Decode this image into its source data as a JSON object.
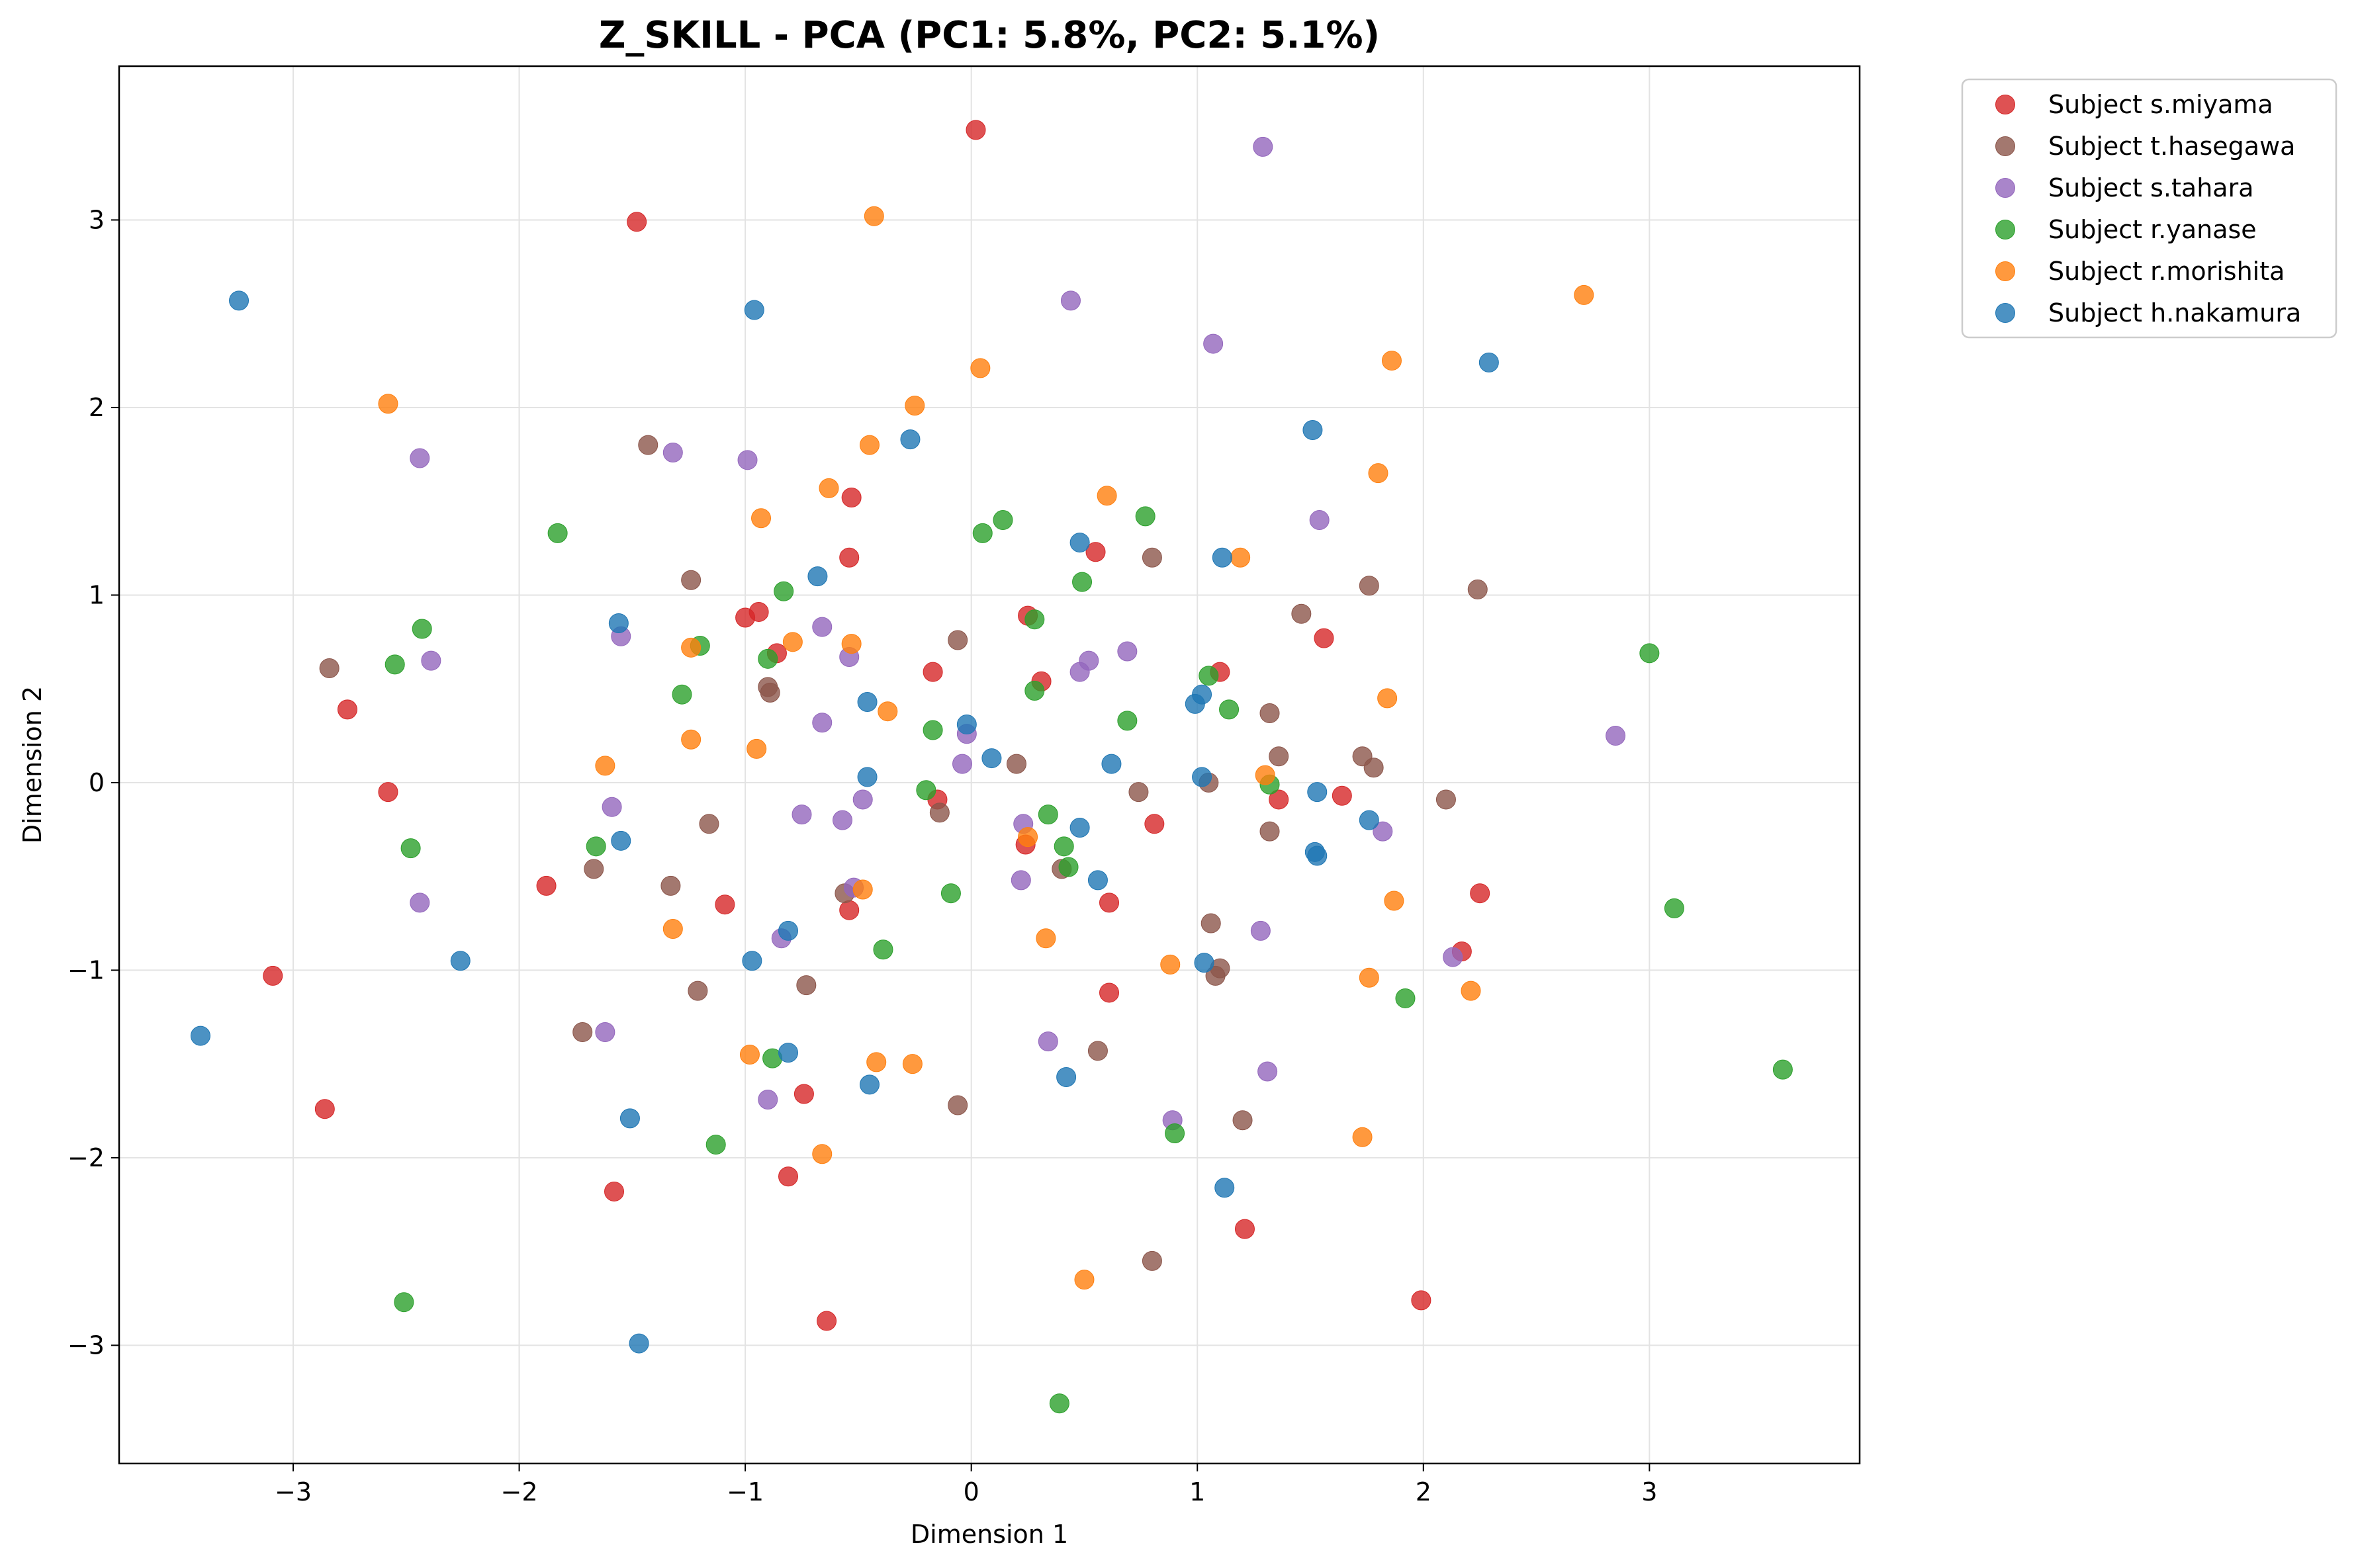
{
  "chart_data": {
    "type": "scatter",
    "title": "Z_SKILL - PCA (PC1: 5.8%, PC2: 5.1%)",
    "xlabel": "Dimension 1",
    "ylabel": "Dimension 2",
    "xlim": [
      -3.77,
      3.93
    ],
    "ylim": [
      -3.63,
      3.82
    ],
    "xticks": [
      -3,
      -2,
      -1,
      0,
      1,
      2,
      3
    ],
    "yticks": [
      -3,
      -2,
      -1,
      0,
      1,
      2,
      3
    ],
    "xtick_labels": [
      "−3",
      "−2",
      "−1",
      "0",
      "1",
      "2",
      "3"
    ],
    "ytick_labels": [
      "−3",
      "−2",
      "−1",
      "0",
      "1",
      "2",
      "3"
    ],
    "grid": true,
    "legend_position": "outside-top-right",
    "series": [
      {
        "name": "Subject s.miyama",
        "color": "#d62728",
        "points": [
          [
            0.02,
            3.48
          ],
          [
            -1.48,
            2.99
          ],
          [
            -0.53,
            1.52
          ],
          [
            -0.54,
            1.2
          ],
          [
            0.55,
            1.23
          ],
          [
            -1.0,
            0.88
          ],
          [
            -0.94,
            0.91
          ],
          [
            -0.86,
            0.69
          ],
          [
            0.25,
            0.89
          ],
          [
            1.56,
            0.77
          ],
          [
            1.1,
            0.59
          ],
          [
            -0.17,
            0.59
          ],
          [
            0.31,
            0.54
          ],
          [
            -2.76,
            0.39
          ],
          [
            -2.58,
            -0.05
          ],
          [
            -0.15,
            -0.09
          ],
          [
            1.36,
            -0.09
          ],
          [
            1.64,
            -0.07
          ],
          [
            0.81,
            -0.22
          ],
          [
            0.24,
            -0.33
          ],
          [
            -1.88,
            -0.55
          ],
          [
            -1.09,
            -0.65
          ],
          [
            -0.54,
            -0.68
          ],
          [
            0.61,
            -0.64
          ],
          [
            2.25,
            -0.59
          ],
          [
            2.17,
            -0.9
          ],
          [
            -3.09,
            -1.03
          ],
          [
            0.61,
            -1.12
          ],
          [
            -0.74,
            -1.66
          ],
          [
            -2.86,
            -1.74
          ],
          [
            -1.58,
            -2.18
          ],
          [
            -0.81,
            -2.1
          ],
          [
            1.21,
            -2.38
          ],
          [
            1.99,
            -2.76
          ],
          [
            -0.64,
            -2.87
          ]
        ]
      },
      {
        "name": "Subject t.hasegawa",
        "color": "#8c564b",
        "points": [
          [
            -1.43,
            1.8
          ],
          [
            -1.24,
            1.08
          ],
          [
            0.8,
            1.2
          ],
          [
            1.76,
            1.05
          ],
          [
            2.24,
            1.03
          ],
          [
            1.46,
            0.9
          ],
          [
            -0.06,
            0.76
          ],
          [
            -2.84,
            0.61
          ],
          [
            -0.9,
            0.51
          ],
          [
            -0.89,
            0.48
          ],
          [
            1.32,
            0.37
          ],
          [
            1.36,
            0.14
          ],
          [
            1.73,
            0.14
          ],
          [
            1.78,
            0.08
          ],
          [
            0.2,
            0.1
          ],
          [
            1.05,
            0.0
          ],
          [
            0.74,
            -0.05
          ],
          [
            2.1,
            -0.09
          ],
          [
            -0.14,
            -0.16
          ],
          [
            -1.16,
            -0.22
          ],
          [
            1.32,
            -0.26
          ],
          [
            -1.67,
            -0.46
          ],
          [
            0.4,
            -0.46
          ],
          [
            -1.33,
            -0.55
          ],
          [
            -0.56,
            -0.59
          ],
          [
            1.06,
            -0.75
          ],
          [
            1.1,
            -0.99
          ],
          [
            1.08,
            -1.03
          ],
          [
            -0.73,
            -1.08
          ],
          [
            -1.21,
            -1.11
          ],
          [
            -1.72,
            -1.33
          ],
          [
            0.56,
            -1.43
          ],
          [
            -0.06,
            -1.72
          ],
          [
            1.2,
            -1.8
          ],
          [
            0.8,
            -2.55
          ]
        ]
      },
      {
        "name": "Subject s.tahara",
        "color": "#9467bd",
        "points": [
          [
            1.29,
            3.39
          ],
          [
            0.44,
            2.57
          ],
          [
            1.07,
            2.34
          ],
          [
            -2.44,
            1.73
          ],
          [
            -1.32,
            1.76
          ],
          [
            -0.99,
            1.72
          ],
          [
            1.54,
            1.4
          ],
          [
            -0.66,
            0.83
          ],
          [
            -1.55,
            0.78
          ],
          [
            -2.39,
            0.65
          ],
          [
            0.52,
            0.65
          ],
          [
            0.69,
            0.7
          ],
          [
            0.48,
            0.59
          ],
          [
            -0.54,
            0.67
          ],
          [
            -0.66,
            0.32
          ],
          [
            -0.02,
            0.26
          ],
          [
            -0.04,
            0.1
          ],
          [
            2.85,
            0.25
          ],
          [
            -1.59,
            -0.13
          ],
          [
            -0.75,
            -0.17
          ],
          [
            -0.48,
            -0.09
          ],
          [
            -0.57,
            -0.2
          ],
          [
            0.23,
            -0.22
          ],
          [
            1.82,
            -0.26
          ],
          [
            -2.44,
            -0.64
          ],
          [
            0.22,
            -0.52
          ],
          [
            -0.52,
            -0.56
          ],
          [
            -0.84,
            -0.83
          ],
          [
            1.28,
            -0.79
          ],
          [
            2.13,
            -0.93
          ],
          [
            -1.62,
            -1.33
          ],
          [
            0.34,
            -1.38
          ],
          [
            1.31,
            -1.54
          ],
          [
            -0.9,
            -1.69
          ],
          [
            0.89,
            -1.8
          ]
        ]
      },
      {
        "name": "Subject r.yanase",
        "color": "#2ca02c",
        "points": [
          [
            -1.83,
            1.33
          ],
          [
            0.14,
            1.4
          ],
          [
            0.77,
            1.42
          ],
          [
            0.05,
            1.33
          ],
          [
            0.49,
            1.07
          ],
          [
            -0.83,
            1.02
          ],
          [
            0.28,
            0.87
          ],
          [
            -2.43,
            0.82
          ],
          [
            -1.2,
            0.73
          ],
          [
            -0.9,
            0.66
          ],
          [
            1.05,
            0.57
          ],
          [
            -2.55,
            0.63
          ],
          [
            3.0,
            0.69
          ],
          [
            0.28,
            0.49
          ],
          [
            -1.28,
            0.47
          ],
          [
            1.14,
            0.39
          ],
          [
            0.69,
            0.33
          ],
          [
            -0.17,
            0.28
          ],
          [
            1.32,
            -0.01
          ],
          [
            -0.2,
            -0.04
          ],
          [
            0.34,
            -0.17
          ],
          [
            -1.66,
            -0.34
          ],
          [
            -2.48,
            -0.35
          ],
          [
            0.41,
            -0.34
          ],
          [
            0.43,
            -0.45
          ],
          [
            3.11,
            -0.67
          ],
          [
            -0.09,
            -0.59
          ],
          [
            -0.39,
            -0.89
          ],
          [
            1.92,
            -1.15
          ],
          [
            -0.88,
            -1.47
          ],
          [
            3.59,
            -1.53
          ],
          [
            0.9,
            -1.87
          ],
          [
            -1.13,
            -1.93
          ],
          [
            -2.51,
            -2.77
          ],
          [
            0.39,
            -3.31
          ]
        ]
      },
      {
        "name": "Subject r.morishita",
        "color": "#ff7f0e",
        "points": [
          [
            -0.43,
            3.02
          ],
          [
            2.71,
            2.6
          ],
          [
            1.86,
            2.25
          ],
          [
            0.04,
            2.21
          ],
          [
            -2.58,
            2.02
          ],
          [
            -0.25,
            2.01
          ],
          [
            -0.45,
            1.8
          ],
          [
            1.8,
            1.65
          ],
          [
            -0.63,
            1.57
          ],
          [
            0.6,
            1.53
          ],
          [
            -0.93,
            1.41
          ],
          [
            1.19,
            1.2
          ],
          [
            -0.79,
            0.75
          ],
          [
            -1.24,
            0.72
          ],
          [
            -0.53,
            0.74
          ],
          [
            1.84,
            0.45
          ],
          [
            -0.37,
            0.38
          ],
          [
            -1.24,
            0.23
          ],
          [
            -0.95,
            0.18
          ],
          [
            -1.62,
            0.09
          ],
          [
            1.3,
            0.04
          ],
          [
            0.25,
            -0.29
          ],
          [
            -0.48,
            -0.57
          ],
          [
            1.87,
            -0.63
          ],
          [
            -1.32,
            -0.78
          ],
          [
            0.33,
            -0.83
          ],
          [
            0.88,
            -0.97
          ],
          [
            1.76,
            -1.04
          ],
          [
            2.21,
            -1.11
          ],
          [
            -0.98,
            -1.45
          ],
          [
            -0.42,
            -1.49
          ],
          [
            -0.26,
            -1.5
          ],
          [
            1.73,
            -1.89
          ],
          [
            -0.66,
            -1.98
          ],
          [
            0.5,
            -2.65
          ]
        ]
      },
      {
        "name": "Subject h.nakamura",
        "color": "#1f77b4",
        "points": [
          [
            -3.24,
            2.57
          ],
          [
            -0.96,
            2.52
          ],
          [
            2.29,
            2.24
          ],
          [
            1.51,
            1.88
          ],
          [
            -0.27,
            1.83
          ],
          [
            0.48,
            1.28
          ],
          [
            1.11,
            1.2
          ],
          [
            -0.68,
            1.1
          ],
          [
            -1.56,
            0.85
          ],
          [
            -0.46,
            0.43
          ],
          [
            0.99,
            0.42
          ],
          [
            1.02,
            0.47
          ],
          [
            -0.02,
            0.31
          ],
          [
            0.09,
            0.13
          ],
          [
            0.62,
            0.1
          ],
          [
            -0.46,
            0.03
          ],
          [
            1.02,
            0.03
          ],
          [
            1.53,
            -0.05
          ],
          [
            1.76,
            -0.2
          ],
          [
            0.48,
            -0.24
          ],
          [
            -1.55,
            -0.31
          ],
          [
            1.52,
            -0.37
          ],
          [
            1.53,
            -0.39
          ],
          [
            0.56,
            -0.52
          ],
          [
            -0.81,
            -0.79
          ],
          [
            -0.97,
            -0.95
          ],
          [
            1.03,
            -0.96
          ],
          [
            -2.26,
            -0.95
          ],
          [
            -3.41,
            -1.35
          ],
          [
            -0.81,
            -1.44
          ],
          [
            0.42,
            -1.57
          ],
          [
            -0.45,
            -1.61
          ],
          [
            -1.51,
            -1.79
          ],
          [
            1.12,
            -2.16
          ],
          [
            -1.47,
            -2.99
          ]
        ]
      }
    ]
  }
}
